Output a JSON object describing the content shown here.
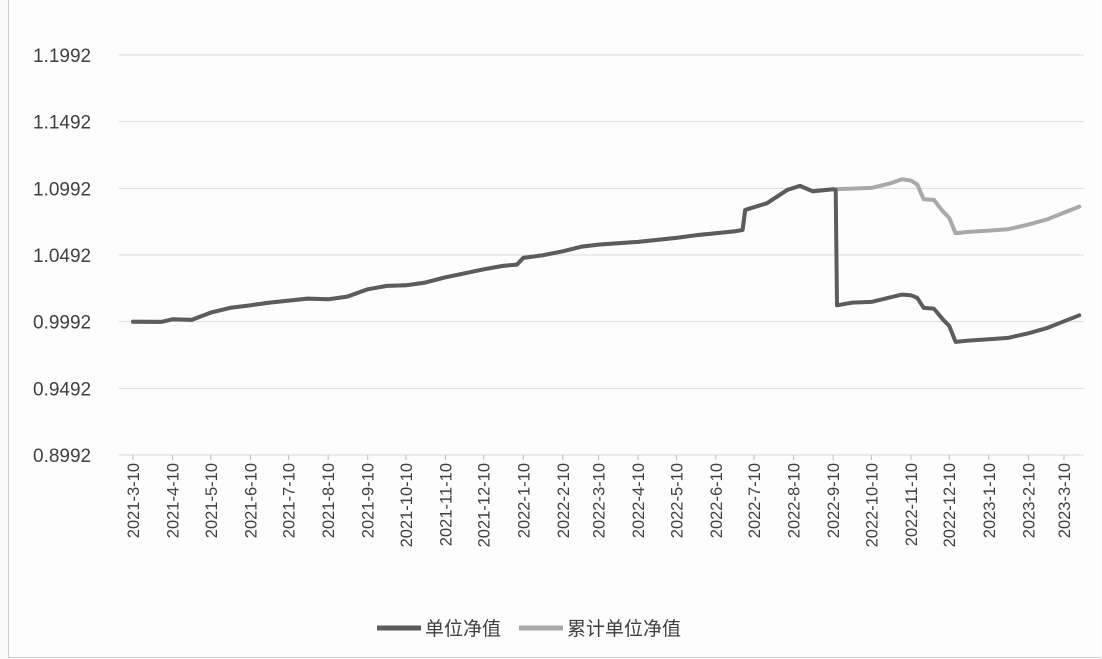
{
  "chart_data": {
    "type": "line",
    "title": "",
    "xlabel": "",
    "ylabel": "",
    "x_ticks": [
      "2021-3-10",
      "2021-4-10",
      "2021-5-10",
      "2021-6-10",
      "2021-7-10",
      "2021-8-10",
      "2021-9-10",
      "2021-10-10",
      "2021-11-10",
      "2021-12-10",
      "2022-1-10",
      "2022-2-10",
      "2022-3-10",
      "2022-4-10",
      "2022-5-10",
      "2022-6-10",
      "2022-7-10",
      "2022-8-10",
      "2022-9-10",
      "2022-10-10",
      "2022-11-10",
      "2022-12-10",
      "2023-1-10",
      "2023-2-10",
      "2023-3-10"
    ],
    "y_ticks": [
      "0.8992",
      "0.9492",
      "0.9992",
      "1.0492",
      "1.0992",
      "1.1492",
      "1.1992"
    ],
    "ylim": [
      0.8992,
      1.1992
    ],
    "grid": true,
    "legend_position": "bottom",
    "series": [
      {
        "name": "单位净值",
        "color": "#5c5c5c",
        "points": [
          [
            "2021-3-10",
            0.9992
          ],
          [
            "2021-4-1",
            0.999
          ],
          [
            "2021-4-10",
            1.001
          ],
          [
            "2021-4-25",
            1.0005
          ],
          [
            "2021-5-10",
            1.006
          ],
          [
            "2021-5-25",
            1.0095
          ],
          [
            "2021-6-10",
            1.0115
          ],
          [
            "2021-6-25",
            1.0135
          ],
          [
            "2021-7-10",
            1.015
          ],
          [
            "2021-7-25",
            1.0165
          ],
          [
            "2021-8-10",
            1.016
          ],
          [
            "2021-8-25",
            1.018
          ],
          [
            "2021-9-10",
            1.0235
          ],
          [
            "2021-9-25",
            1.026
          ],
          [
            "2021-10-10",
            1.0265
          ],
          [
            "2021-10-25",
            1.0285
          ],
          [
            "2021-11-10",
            1.0325
          ],
          [
            "2021-11-25",
            1.0355
          ],
          [
            "2021-12-10",
            1.0385
          ],
          [
            "2021-12-25",
            1.041
          ],
          [
            "2022-1-5",
            1.042
          ],
          [
            "2022-1-10",
            1.047
          ],
          [
            "2022-1-25",
            1.049
          ],
          [
            "2022-2-10",
            1.052
          ],
          [
            "2022-2-25",
            1.0555
          ],
          [
            "2022-3-10",
            1.057
          ],
          [
            "2022-3-25",
            1.058
          ],
          [
            "2022-4-10",
            1.059
          ],
          [
            "2022-4-25",
            1.0605
          ],
          [
            "2022-5-10",
            1.062
          ],
          [
            "2022-5-25",
            1.064
          ],
          [
            "2022-6-10",
            1.0655
          ],
          [
            "2022-6-25",
            1.067
          ],
          [
            "2022-7-1",
            1.068
          ],
          [
            "2022-7-3",
            1.083
          ],
          [
            "2022-7-20",
            1.088
          ],
          [
            "2022-8-5",
            1.098
          ],
          [
            "2022-8-15",
            1.101
          ],
          [
            "2022-8-25",
            1.097
          ],
          [
            "2022-9-10",
            1.0985
          ],
          [
            "2022-9-12",
            1.098
          ],
          [
            "2022-9-13",
            1.0115
          ],
          [
            "2022-9-25",
            1.0135
          ],
          [
            "2022-10-10",
            1.014
          ],
          [
            "2022-10-25",
            1.0175
          ],
          [
            "2022-11-3",
            1.0195
          ],
          [
            "2022-11-10",
            1.019
          ],
          [
            "2022-11-15",
            1.017
          ],
          [
            "2022-11-20",
            1.0095
          ],
          [
            "2022-11-28",
            1.009
          ],
          [
            "2022-12-5",
            1.001
          ],
          [
            "2022-12-10",
            0.996
          ],
          [
            "2022-12-15",
            0.984
          ],
          [
            "2022-12-25",
            0.985
          ],
          [
            "2023-1-10",
            0.986
          ],
          [
            "2023-1-25",
            0.987
          ],
          [
            "2023-2-10",
            0.9905
          ],
          [
            "2023-2-25",
            0.9945
          ],
          [
            "2023-3-10",
            0.9995
          ],
          [
            "2023-3-22",
            1.004
          ]
        ]
      },
      {
        "name": "累计单位净值",
        "color": "#a9a9a9",
        "points": [
          [
            "2021-3-10",
            0.9992
          ],
          [
            "2021-4-1",
            0.999
          ],
          [
            "2021-4-10",
            1.001
          ],
          [
            "2021-4-25",
            1.0005
          ],
          [
            "2021-5-10",
            1.006
          ],
          [
            "2021-5-25",
            1.0095
          ],
          [
            "2021-6-10",
            1.0115
          ],
          [
            "2021-6-25",
            1.0135
          ],
          [
            "2021-7-10",
            1.015
          ],
          [
            "2021-7-25",
            1.0165
          ],
          [
            "2021-8-10",
            1.016
          ],
          [
            "2021-8-25",
            1.018
          ],
          [
            "2021-9-10",
            1.0235
          ],
          [
            "2021-9-25",
            1.026
          ],
          [
            "2021-10-10",
            1.0265
          ],
          [
            "2021-10-25",
            1.0285
          ],
          [
            "2021-11-10",
            1.0325
          ],
          [
            "2021-11-25",
            1.0355
          ],
          [
            "2021-12-10",
            1.0385
          ],
          [
            "2021-12-25",
            1.041
          ],
          [
            "2022-1-5",
            1.042
          ],
          [
            "2022-1-10",
            1.047
          ],
          [
            "2022-1-25",
            1.049
          ],
          [
            "2022-2-10",
            1.052
          ],
          [
            "2022-2-25",
            1.0555
          ],
          [
            "2022-3-10",
            1.057
          ],
          [
            "2022-3-25",
            1.058
          ],
          [
            "2022-4-10",
            1.059
          ],
          [
            "2022-4-25",
            1.0605
          ],
          [
            "2022-5-10",
            1.062
          ],
          [
            "2022-5-25",
            1.064
          ],
          [
            "2022-6-10",
            1.0655
          ],
          [
            "2022-6-25",
            1.067
          ],
          [
            "2022-7-1",
            1.068
          ],
          [
            "2022-7-3",
            1.083
          ],
          [
            "2022-7-20",
            1.088
          ],
          [
            "2022-8-5",
            1.098
          ],
          [
            "2022-8-15",
            1.101
          ],
          [
            "2022-8-25",
            1.097
          ],
          [
            "2022-9-10",
            1.0985
          ],
          [
            "2022-9-25",
            1.099
          ],
          [
            "2022-10-10",
            1.0995
          ],
          [
            "2022-10-25",
            1.103
          ],
          [
            "2022-11-3",
            1.106
          ],
          [
            "2022-11-10",
            1.105
          ],
          [
            "2022-11-15",
            1.102
          ],
          [
            "2022-11-20",
            1.091
          ],
          [
            "2022-11-28",
            1.0905
          ],
          [
            "2022-12-5",
            1.082
          ],
          [
            "2022-12-10",
            1.077
          ],
          [
            "2022-12-15",
            1.0655
          ],
          [
            "2022-12-25",
            1.0665
          ],
          [
            "2023-1-10",
            1.0675
          ],
          [
            "2023-1-25",
            1.0685
          ],
          [
            "2023-2-10",
            1.072
          ],
          [
            "2023-2-25",
            1.076
          ],
          [
            "2023-3-10",
            1.081
          ],
          [
            "2023-3-22",
            1.0855
          ]
        ]
      }
    ]
  }
}
